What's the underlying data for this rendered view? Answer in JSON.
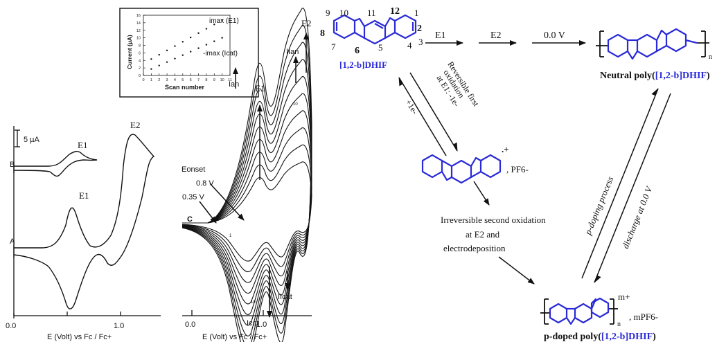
{
  "inset": {
    "ylabel": "Current (µA)",
    "xlabel": "Scan number",
    "yticks": [
      "0",
      "2",
      "4",
      "6",
      "8",
      "10",
      "12",
      "14",
      "16"
    ],
    "xticks": [
      "0",
      "1",
      "2",
      "3",
      "4",
      "5",
      "6",
      "7",
      "8",
      "9",
      "10",
      "11"
    ],
    "label_e1": "imax (E1)",
    "label_icat": "-imax (Icat)"
  },
  "left_cv": {
    "scale": "5 µA",
    "trace_b": "B",
    "trace_a": "A",
    "peak_e1_b": "E1",
    "peak_e1_a": "E1",
    "peak_e2": "E2",
    "xticks": [
      "0.0",
      "1.0"
    ],
    "xlabel": "E (Volt) vs  Fc / Fc+"
  },
  "right_cv": {
    "eonset": "Eonset",
    "v08": "0.8 V",
    "v035": "0.35 V",
    "c_label": "C",
    "e1": "E1",
    "e2": "E2",
    "ian": "Ian",
    "ilan": "IIan",
    "ilcat": "IIcat",
    "icat": "Icat",
    "scan_first": "1",
    "scan_last": "10",
    "xticks": [
      "0.0",
      "1.0"
    ],
    "xlabel": "E (Volt) vs Fc / Fc+"
  },
  "scheme": {
    "numbers": [
      "9",
      "10",
      "11",
      "12",
      "1",
      "2",
      "8",
      "7",
      "6",
      "5",
      "4",
      "3"
    ],
    "monomer": "[1,2-b]DHIF",
    "e1_step": "E1",
    "e2_step": "E2",
    "zero_v": "0.0 V",
    "neutral_prefix": "Neutral poly(",
    "neutral_name": "[1,2-b]DHIF",
    "neutral_suffix": ")",
    "first_ox": [
      "Reversible first",
      "oxidation",
      "at E1: -1e-"
    ],
    "plus_e": "+1e-",
    "radical_charge": ".+",
    "pf6": ", PF6-",
    "second_ox": [
      "Irreversible  second oxidation",
      "at E2 and",
      "electrodeposition"
    ],
    "p_doping": "p-doping process",
    "discharge": "discharge at 0.0 V",
    "m_plus": "m+",
    "mpf6": ", mPF6-",
    "n": "n",
    "doped_prefix": "p-doped poly(",
    "doped_name": "[1,2-b]DHIF",
    "doped_suffix": ")"
  }
}
